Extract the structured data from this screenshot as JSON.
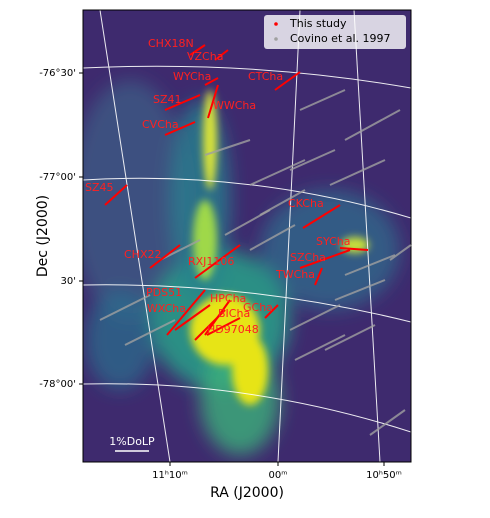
{
  "chart_data": {
    "type": "sky-map",
    "xlabel": "RA (J2000)",
    "ylabel": "Dec (J2000)",
    "xticks": [
      "11ʰ10ᵐ",
      "00ᵐ",
      "10ʰ50ᵐ"
    ],
    "yticks": [
      "-76°30'",
      "-77°00'",
      "30'",
      "-78°00'"
    ],
    "series": [
      {
        "name": "This study",
        "color": "#ff0000"
      },
      {
        "name": "Covino et al. 1997",
        "color": "#a0a0a0"
      }
    ],
    "annotations": [
      "CHX18N",
      "VZCha",
      "WYCha",
      "CTCha",
      "SZ41",
      "WWCha",
      "CVCha",
      "SZ45",
      "CKCha",
      "CHX22",
      "RXJ1106",
      "SYCha",
      "SZCha",
      "TWCha",
      "PDS51",
      "HPCha",
      "WXCha",
      "GCha",
      "BICha",
      "HD97048"
    ],
    "scale_bar": "1%DoLP"
  }
}
